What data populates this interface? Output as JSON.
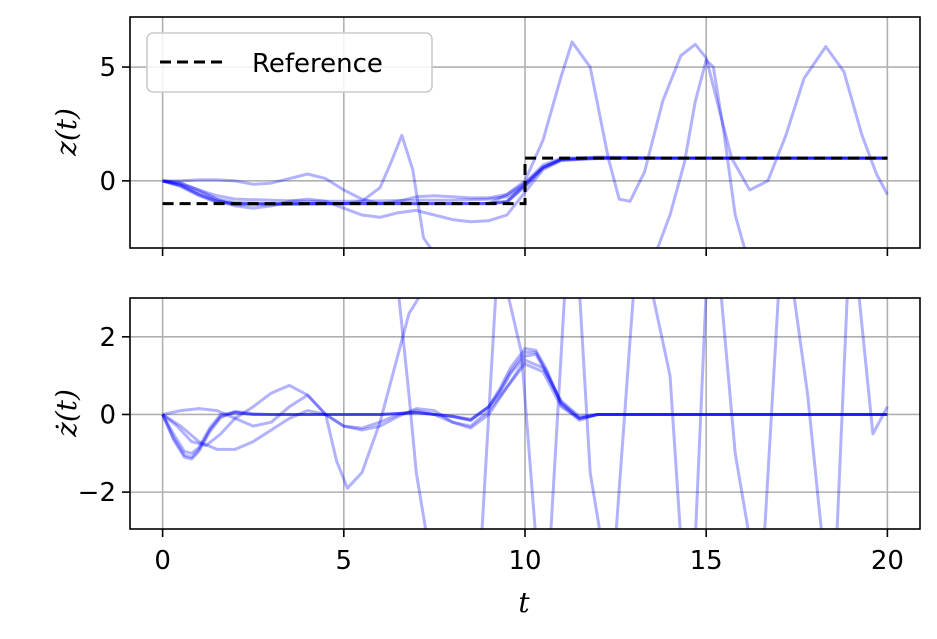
{
  "chart_data": [
    {
      "type": "line",
      "ylabel": "z(t)",
      "xlabel": "",
      "xlim": [
        -0.9,
        20.9
      ],
      "ylim": [
        -2.95,
        7.2
      ],
      "xticks": [
        0,
        5,
        10,
        15,
        20
      ],
      "xtick_labels": [
        "",
        "",
        "",
        "",
        ""
      ],
      "yticks": [
        0,
        5
      ],
      "ytick_labels": [
        "0",
        "5"
      ],
      "grid": true,
      "legend": {
        "placement": "upper-left",
        "entries": [
          "Reference"
        ]
      },
      "reference": {
        "name": "Reference",
        "color": "#000000",
        "style": "dashed",
        "x": [
          0,
          10,
          10,
          20
        ],
        "y": [
          -1,
          -1,
          1,
          1
        ]
      },
      "trajectory_color": "#0000ff",
      "series": [
        {
          "x": [
            0,
            0.5,
            1,
            1.5,
            2,
            3,
            4,
            5,
            6,
            7,
            8,
            9,
            9.5,
            10,
            10.5,
            11,
            12,
            14,
            16,
            18,
            20
          ],
          "y": [
            0,
            -0.2,
            -0.6,
            -0.9,
            -1.0,
            -1.02,
            -1.0,
            -1.0,
            -1.0,
            -1.0,
            -1.0,
            -1.0,
            -0.95,
            -0.2,
            0.6,
            0.95,
            1.0,
            1.0,
            1.0,
            1.0,
            1.0
          ]
        },
        {
          "x": [
            0,
            0.5,
            1,
            1.5,
            2,
            3,
            4,
            5,
            6,
            7,
            8,
            9,
            9.5,
            10,
            10.5,
            11,
            12,
            14,
            16,
            18,
            20
          ],
          "y": [
            0,
            -0.25,
            -0.65,
            -0.95,
            -1.05,
            -1.05,
            -1.02,
            -1.0,
            -1.0,
            -1.0,
            -1.0,
            -0.98,
            -0.9,
            -0.1,
            0.7,
            1.0,
            1.02,
            1.0,
            1.0,
            1.0,
            1.0
          ]
        },
        {
          "x": [
            0,
            0.5,
            1,
            1.5,
            2,
            3,
            4,
            5,
            6,
            7,
            8,
            9,
            9.5,
            10,
            10.5,
            11,
            12,
            14,
            16,
            18,
            20
          ],
          "y": [
            0,
            -0.15,
            -0.5,
            -0.8,
            -0.95,
            -1.0,
            -1.0,
            -1.0,
            -1.0,
            -1.0,
            -1.0,
            -1.0,
            -0.92,
            -0.25,
            0.55,
            0.9,
            0.98,
            1.0,
            1.0,
            1.0,
            1.0
          ]
        },
        {
          "x": [
            0,
            0.5,
            1,
            1.5,
            2,
            3,
            4,
            5,
            6,
            7,
            8,
            9,
            9.5,
            10,
            10.5,
            11,
            12,
            14,
            16,
            18,
            20
          ],
          "y": [
            0,
            -0.1,
            -0.4,
            -0.65,
            -0.8,
            -0.85,
            -0.9,
            -0.9,
            -0.88,
            -0.85,
            -0.85,
            -0.8,
            -0.7,
            -0.2,
            0.6,
            0.95,
            1.05,
            1.0,
            1.0,
            1.0,
            1.0
          ]
        },
        {
          "x": [
            0,
            0.5,
            1,
            1.5,
            2,
            2.5,
            3,
            3.5,
            4,
            4.5,
            5,
            5.5,
            6,
            6.5,
            7,
            7.5,
            8,
            8.5,
            9,
            9.5,
            10,
            10.5,
            11,
            12,
            14,
            16,
            18,
            20
          ],
          "y": [
            0,
            0.0,
            0.05,
            0.05,
            0.0,
            -0.15,
            -0.1,
            0.1,
            0.3,
            0.1,
            -0.4,
            -0.8,
            -1.0,
            -0.9,
            -0.7,
            -0.65,
            -0.7,
            -0.75,
            -0.75,
            -0.6,
            -0.1,
            0.6,
            0.95,
            1.0,
            1.0,
            1.0,
            1.0,
            1.0
          ]
        },
        {
          "x": [
            0,
            0.5,
            1,
            1.5,
            2,
            2.5,
            3,
            3.5,
            4,
            4.5,
            5,
            5.5,
            6,
            6.5,
            7,
            7.5,
            8,
            8.5,
            9,
            9.5,
            10,
            10.5,
            11,
            12,
            14,
            16,
            18,
            20
          ],
          "y": [
            0,
            -0.1,
            -0.4,
            -0.8,
            -1.1,
            -1.2,
            -1.1,
            -0.9,
            -0.8,
            -0.9,
            -1.2,
            -1.5,
            -1.6,
            -1.4,
            -1.3,
            -1.5,
            -1.7,
            -1.8,
            -1.75,
            -1.5,
            -0.5,
            0.5,
            0.9,
            1.0,
            1.0,
            1.0,
            1.0,
            1.0
          ]
        },
        {
          "x": [
            0,
            0.5,
            1,
            1.5,
            2,
            2.5,
            3,
            3.5,
            4,
            4.5,
            5,
            5.5,
            6,
            6.3,
            6.6,
            6.9,
            7.2,
            7.5
          ],
          "y": [
            0,
            -0.2,
            -0.6,
            -0.9,
            -1.0,
            -1.0,
            -1.0,
            -1.0,
            -1.0,
            -1.0,
            -1.0,
            -0.9,
            -0.3,
            0.8,
            2.0,
            0.5,
            -2.5,
            -3.2
          ]
        },
        {
          "x": [
            9,
            9.5,
            10,
            10.5,
            11,
            11.3,
            11.8,
            12.3,
            12.6,
            12.9,
            13.3,
            13.8,
            14.3,
            14.7,
            15,
            15.3,
            15.7,
            16.2,
            16.7,
            17.2,
            17.7,
            18.3,
            18.8,
            19.3,
            19.7,
            20
          ],
          "y": [
            -1.0,
            -0.6,
            0.0,
            1.8,
            4.6,
            6.1,
            5.0,
            1.0,
            -0.8,
            -0.9,
            0.4,
            3.5,
            5.5,
            6.0,
            5.4,
            3.5,
            1.0,
            -0.4,
            0.0,
            2.0,
            4.5,
            5.9,
            4.8,
            2.0,
            0.3,
            -0.6
          ]
        },
        {
          "x": [
            13.6,
            14,
            14.4,
            14.7,
            15,
            15.2,
            15.5,
            15.8,
            16.1
          ],
          "y": [
            -3.2,
            -1.5,
            0.8,
            3.5,
            5.3,
            5.0,
            2.0,
            -1.5,
            -3.2
          ]
        }
      ]
    },
    {
      "type": "line",
      "ylabel": "ż(t)",
      "xlabel": "t",
      "xlim": [
        -0.9,
        20.9
      ],
      "ylim": [
        -2.95,
        3.0
      ],
      "xticks": [
        0,
        5,
        10,
        15,
        20
      ],
      "xtick_labels": [
        "0",
        "5",
        "10",
        "15",
        "20"
      ],
      "yticks": [
        -2,
        0,
        2
      ],
      "ytick_labels": [
        "−2",
        "0",
        "2"
      ],
      "grid": true,
      "trajectory_color": "#0000ff",
      "series": [
        {
          "x": [
            0,
            0.3,
            0.6,
            0.8,
            1,
            1.3,
            1.6,
            2,
            2.5,
            3,
            4,
            5,
            6,
            7,
            8,
            8.5,
            9,
            9.3,
            9.6,
            10,
            10.3,
            10.6,
            11,
            11.5,
            12,
            14,
            16,
            18,
            20
          ],
          "y": [
            0,
            -0.6,
            -1.05,
            -1.1,
            -0.9,
            -0.4,
            -0.05,
            0.05,
            0.0,
            0.0,
            0.0,
            0.0,
            0.0,
            0.05,
            -0.05,
            -0.15,
            0.2,
            0.6,
            1.1,
            1.6,
            1.6,
            1.1,
            0.3,
            -0.1,
            0.0,
            0.0,
            0.0,
            0.0,
            0.0
          ]
        },
        {
          "x": [
            0,
            0.3,
            0.6,
            0.8,
            1,
            1.3,
            1.6,
            2,
            2.5,
            3,
            4,
            5,
            6,
            7,
            8,
            8.5,
            9,
            9.3,
            9.6,
            10,
            10.3,
            10.6,
            11,
            11.5,
            12,
            14,
            16,
            18,
            20
          ],
          "y": [
            0,
            -0.65,
            -1.1,
            -1.15,
            -0.95,
            -0.45,
            -0.08,
            0.08,
            0.02,
            0.0,
            0.0,
            0.0,
            0.0,
            0.05,
            -0.05,
            -0.15,
            0.2,
            0.65,
            1.2,
            1.7,
            1.65,
            1.15,
            0.25,
            -0.15,
            0.0,
            0.0,
            0.0,
            0.0,
            0.0
          ]
        },
        {
          "x": [
            0,
            0.3,
            0.6,
            0.8,
            1,
            1.3,
            1.6,
            2,
            2.5,
            3,
            4,
            5,
            6,
            7,
            8,
            8.5,
            9,
            9.3,
            9.6,
            10,
            10.3,
            10.6,
            11,
            11.5,
            12,
            14,
            16,
            18,
            20
          ],
          "y": [
            0,
            -0.5,
            -0.95,
            -1.0,
            -0.85,
            -0.35,
            0.0,
            0.05,
            0.0,
            0.0,
            0.0,
            0.0,
            0.0,
            0.05,
            -0.05,
            -0.12,
            0.2,
            0.55,
            1.05,
            1.5,
            1.55,
            1.05,
            0.35,
            -0.05,
            0.0,
            0.0,
            0.0,
            0.0,
            0.0
          ]
        },
        {
          "x": [
            0,
            0.4,
            0.8,
            1.2,
            1.6,
            2,
            2.5,
            3,
            3.5,
            4,
            4.5,
            5,
            5.5,
            6,
            6.5,
            7,
            7.5,
            8,
            8.5,
            9,
            9.5,
            10,
            10.5,
            11,
            11.5,
            12,
            14,
            16,
            18,
            20
          ],
          "y": [
            0,
            -0.3,
            -0.7,
            -0.8,
            -0.5,
            -0.1,
            0.2,
            0.55,
            0.75,
            0.5,
            0.0,
            -0.3,
            -0.4,
            -0.3,
            -0.05,
            0.15,
            0.1,
            -0.2,
            -0.35,
            0.0,
            0.7,
            1.4,
            1.2,
            0.3,
            -0.1,
            0.0,
            0.0,
            0.0,
            0.0,
            0.0
          ]
        },
        {
          "x": [
            0,
            0.5,
            1,
            1.5,
            2,
            2.5,
            3,
            3.5,
            4,
            4.5,
            5,
            5.5,
            6,
            6.5,
            7,
            7.5,
            8,
            8.5,
            9,
            9.5,
            10,
            10.5,
            11,
            11.5,
            12,
            14,
            16,
            18,
            20
          ],
          "y": [
            0,
            -0.3,
            -0.7,
            -0.9,
            -0.9,
            -0.7,
            -0.4,
            -0.1,
            0.1,
            0.0,
            -0.3,
            -0.35,
            -0.2,
            0.0,
            0.1,
            0.0,
            -0.2,
            -0.3,
            0.1,
            0.7,
            1.3,
            1.1,
            0.2,
            -0.1,
            0.0,
            0.0,
            0.0,
            0.0,
            0.0
          ]
        },
        {
          "x": [
            0,
            0.5,
            1,
            1.5,
            2,
            2.5,
            3,
            3.5,
            4,
            4.5,
            4.8,
            5.1,
            5.5,
            6,
            6.4,
            6.8,
            7.2,
            7.7
          ],
          "y": [
            0,
            0.1,
            0.15,
            0.1,
            -0.1,
            -0.3,
            -0.2,
            0.2,
            0.5,
            0.0,
            -1.2,
            -1.9,
            -1.5,
            -0.2,
            1.2,
            2.6,
            3.2,
            3.2
          ]
        },
        {
          "x": [
            6.5,
            6.8,
            7.0,
            7.3,
            7.7
          ],
          "y": [
            3.2,
            0.5,
            -1.5,
            -3.2,
            -3.2
          ]
        },
        {
          "x": [
            8.8,
            9.2,
            9.5,
            9.9,
            10.3,
            10.7,
            11.1,
            11.5,
            11.8,
            12.1,
            12.5,
            13,
            13.5,
            14,
            14.3,
            14.7,
            15,
            15.4,
            15.8,
            16.2,
            16.6,
            17,
            17.4,
            17.8,
            18.2,
            18.6,
            18.9,
            19.2,
            19.6,
            20
          ],
          "y": [
            -3.2,
            3.2,
            3.2,
            1.6,
            -3.2,
            -3.2,
            3.2,
            3.2,
            -1.5,
            -3.2,
            -3.2,
            3.2,
            3.2,
            1.0,
            -3.2,
            -3.2,
            3.2,
            3.2,
            -1.0,
            -3.2,
            -3.2,
            3.2,
            3.2,
            0.5,
            -3.2,
            -3.2,
            3.2,
            3.2,
            -0.5,
            0.2
          ]
        }
      ]
    }
  ]
}
